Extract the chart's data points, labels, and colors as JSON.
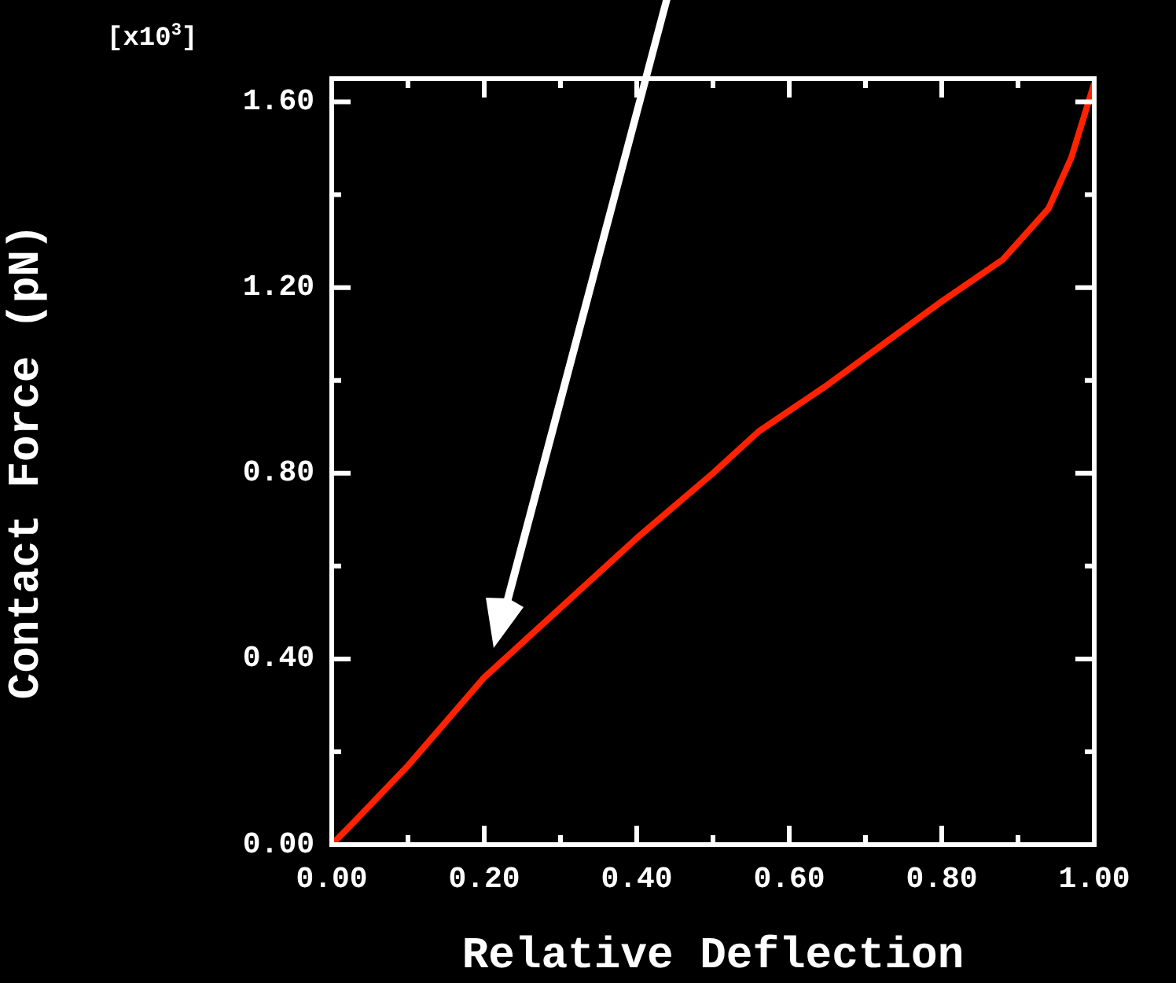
{
  "chart_data": {
    "type": "line",
    "xlabel": "Relative Deflection",
    "ylabel": "Contact Force (pN)",
    "annotations": [
      "[x10$^{3}$]"
    ],
    "x": [
      0,
      0.03,
      0.1,
      0.2,
      0.3,
      0.4,
      0.5,
      0.56,
      0.65,
      0.8,
      0.88,
      0.94,
      0.97,
      1.0
    ],
    "series": [
      {
        "color": "#ff2200",
        "values": [
          0,
          0.05,
          0.17,
          0.36,
          0.51,
          0.66,
          0.8,
          0.89,
          0.99,
          1.17,
          1.26,
          1.37,
          1.48,
          1.64
        ]
      }
    ],
    "xlim": [
      0,
      1
    ],
    "xticks": [
      {
        "value": 0,
        "label": "0.00"
      },
      {
        "value": 0.2,
        "label": "0.20"
      },
      {
        "value": 0.4,
        "label": "0.40"
      },
      {
        "value": 0.6,
        "label": "0.60"
      },
      {
        "value": 0.8,
        "label": "0.80"
      },
      {
        "value": 1,
        "label": "1.00"
      }
    ],
    "ylim": [
      0,
      1.65
    ],
    "yticks": [
      {
        "value": 0,
        "label": "0.00"
      },
      {
        "value": 0.4,
        "label": "0.40"
      },
      {
        "value": 0.8,
        "label": "0.80"
      },
      {
        "value": 1.2,
        "label": "1.20"
      },
      {
        "value": 1.6,
        "label": "1.60"
      }
    ],
    "grid": false,
    "legend": false,
    "marker": "none",
    "line_style": "solid"
  }
}
